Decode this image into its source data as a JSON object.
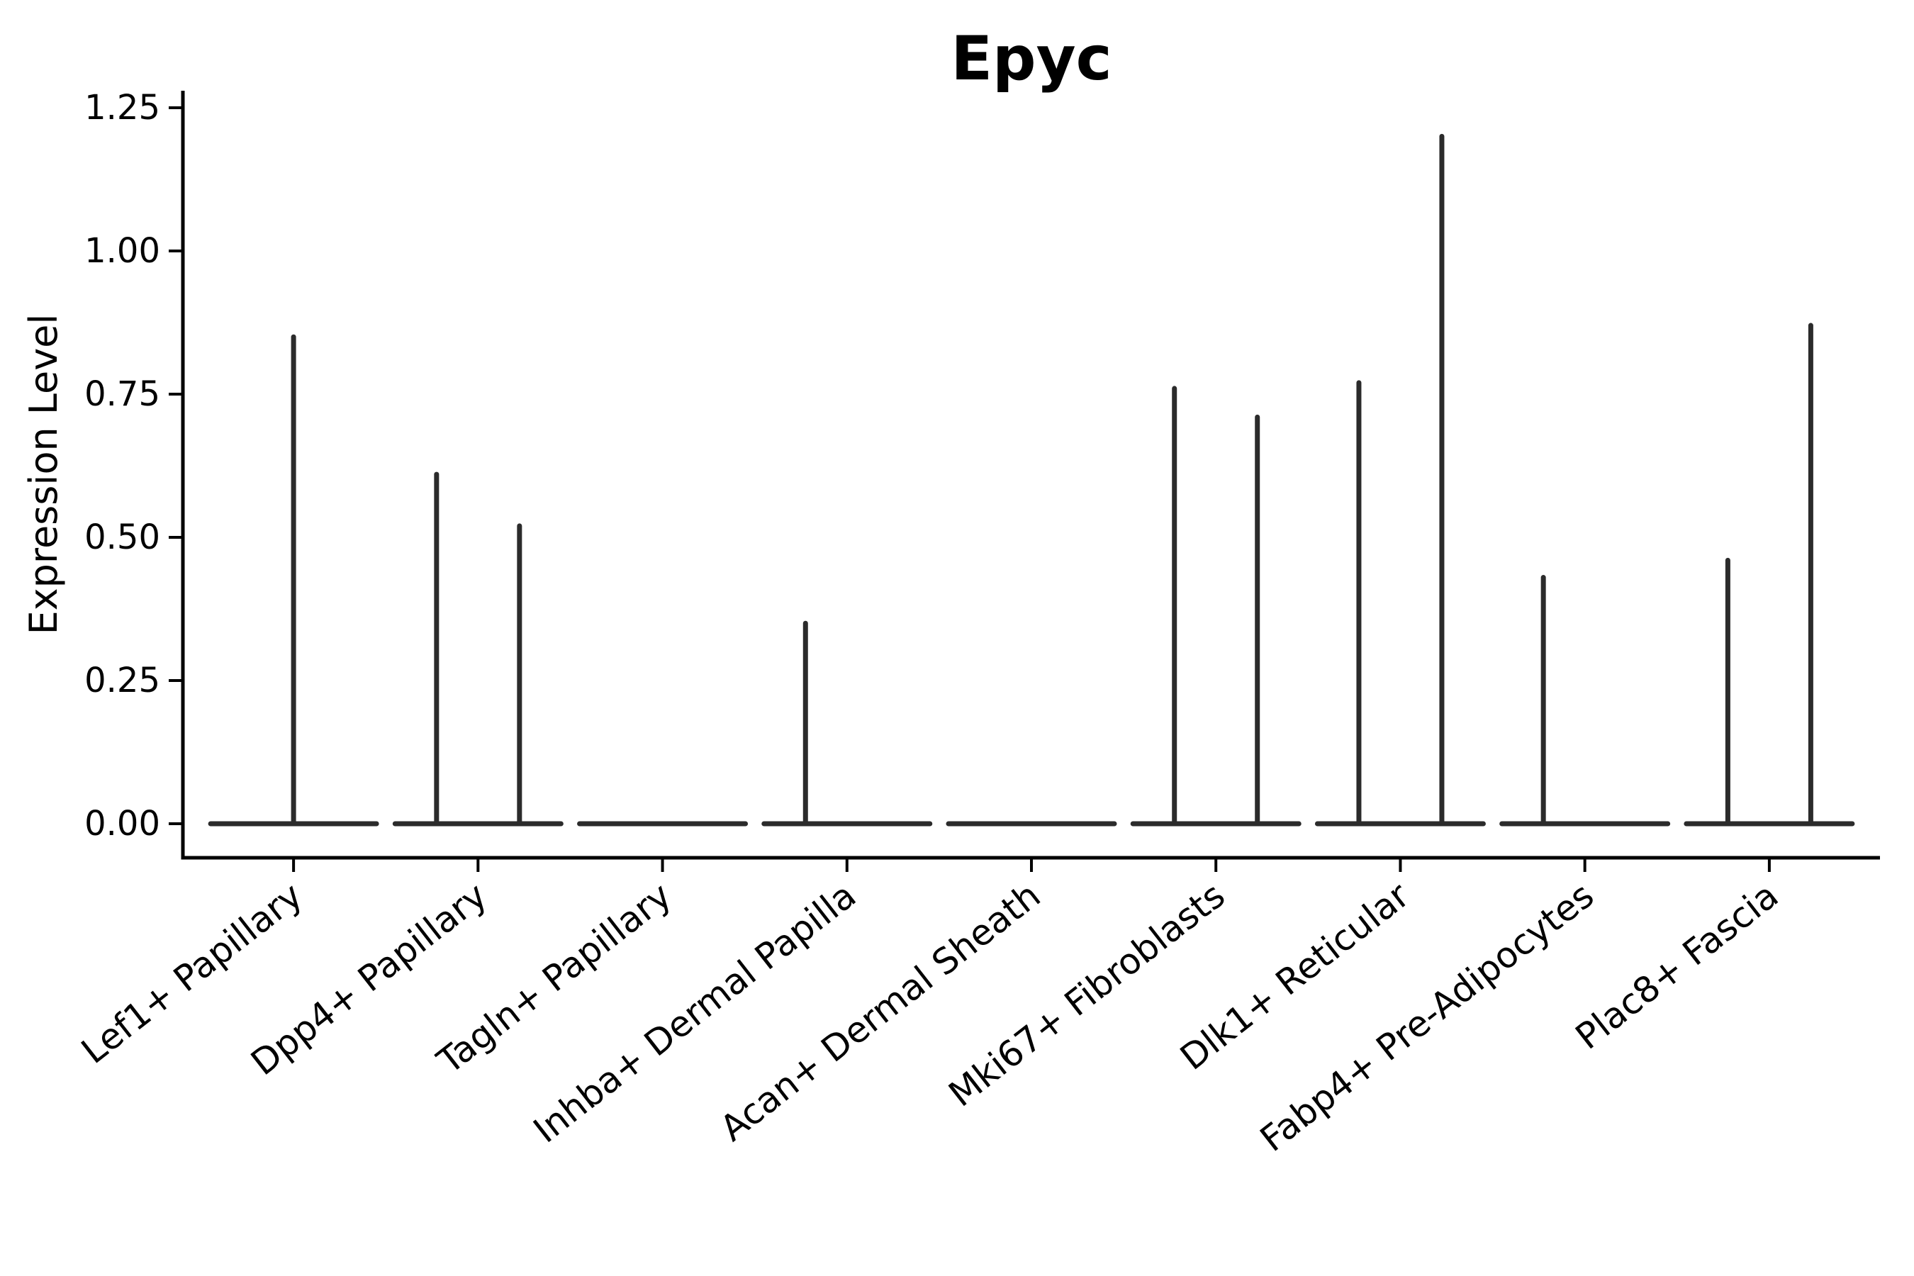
{
  "chart_data": {
    "type": "violin",
    "title": "Epyc",
    "ylabel": "Expression Level",
    "xlabel": "",
    "grid": false,
    "legend": null,
    "ylim": [
      -0.06,
      1.28
    ],
    "y_ticks": [
      {
        "label": "0.00",
        "value": 0.0
      },
      {
        "label": "0.25",
        "value": 0.25
      },
      {
        "label": "0.50",
        "value": 0.5
      },
      {
        "label": "0.75",
        "value": 0.75
      },
      {
        "label": "1.00",
        "value": 1.0
      },
      {
        "label": "1.25",
        "value": 1.25
      }
    ],
    "baseline_value": 0.0,
    "note": "Each category shows a collapsed (near-zero-width) violin: a flat body line at expression 0 plus thin vertical spikes reaching each violin maximum.",
    "categories": [
      {
        "label": "Lef1+ Papillary",
        "violins": [
          {
            "position": "center",
            "max": 0.85
          }
        ]
      },
      {
        "label": "Dpp4+ Papillary",
        "violins": [
          {
            "position": "left",
            "max": 0.61
          },
          {
            "position": "right",
            "max": 0.52
          }
        ]
      },
      {
        "label": "Tagln+ Papillary",
        "violins": []
      },
      {
        "label": "Inhba+ Dermal Papilla",
        "violins": [
          {
            "position": "left",
            "max": 0.35
          }
        ]
      },
      {
        "label": "Acan+ Dermal Sheath",
        "violins": []
      },
      {
        "label": "Mki67+ Fibroblasts",
        "violins": [
          {
            "position": "left",
            "max": 0.76
          },
          {
            "position": "right",
            "max": 0.71
          }
        ]
      },
      {
        "label": "Dlk1+ Reticular",
        "violins": [
          {
            "position": "left",
            "max": 0.77
          },
          {
            "position": "right",
            "max": 1.2
          }
        ]
      },
      {
        "label": "Fabp4+ Pre-Adipocytes",
        "violins": [
          {
            "position": "left",
            "max": 0.43
          }
        ]
      },
      {
        "label": "Plac8+ Fascia",
        "violins": [
          {
            "position": "left",
            "max": 0.46
          },
          {
            "position": "right",
            "max": 0.87
          }
        ]
      }
    ],
    "colors": {
      "violin": "#2b2b2b",
      "axis": "#000000",
      "text": "#000000",
      "background": "#ffffff"
    }
  }
}
